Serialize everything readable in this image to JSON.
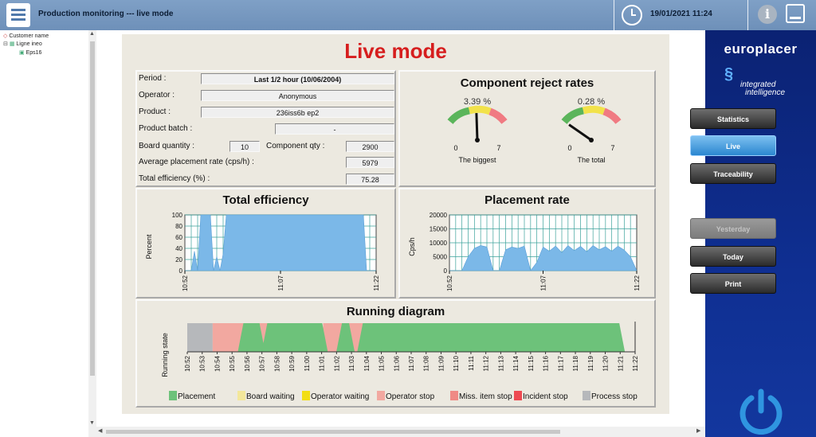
{
  "app": {
    "title": "Production monitoring --- live mode",
    "datetime": "19/01/2021 11:24",
    "info_glyph": "i"
  },
  "tree": {
    "nodes": [
      "Customer name",
      "Ligne ineo",
      "Eps16"
    ]
  },
  "page_title": "Live mode",
  "info": {
    "period_label": "Period :",
    "period_value": "Last 1/2 hour (10/06/2004)",
    "operator_label": "Operator :",
    "operator_value": "Anonymous",
    "product_label": "Product :",
    "product_value": "236iss6b ep2",
    "batch_label": "Product batch :",
    "batch_value": "-",
    "board_qty_label": "Board quantity :",
    "board_qty_value": "10",
    "component_qty_label": "Component qty :",
    "component_qty_value": "2900",
    "avg_rate_label": "Average placement rate (cps/h) :",
    "avg_rate_value": "5979",
    "total_eff_label": "Total efficiency (%) :",
    "total_eff_value": "75.28"
  },
  "reject": {
    "title": "Component reject rates",
    "gauges": [
      {
        "value_text": "3.39 %",
        "value": 3.39,
        "min": "0",
        "max": "7",
        "caption": "The biggest"
      },
      {
        "value_text": "0.28 %",
        "value": 0.28,
        "min": "0",
        "max": "7",
        "caption": "The total"
      }
    ]
  },
  "charts": {
    "efficiency": {
      "title": "Total efficiency",
      "ylabel": "Percent",
      "yticks": [
        "100",
        "80",
        "60",
        "40",
        "20",
        "0"
      ],
      "xticks": [
        "10:52",
        "11:07",
        "11:22"
      ]
    },
    "placement": {
      "title": "Placement rate",
      "ylabel": "Cps/h",
      "yticks": [
        "20000",
        "15000",
        "10000",
        "5000",
        "0"
      ],
      "xticks": [
        "10:52",
        "11:07",
        "11:22"
      ]
    },
    "running": {
      "title": "Running diagram",
      "ylabel": "Running state",
      "xticks": [
        "10:52",
        "10:53",
        "10:54",
        "10:55",
        "10:56",
        "10:57",
        "10:58",
        "10:59",
        "11:00",
        "11:01",
        "11:02",
        "11:03",
        "11:04",
        "11:05",
        "11:06",
        "11:07",
        "11:08",
        "11:09",
        "11:10",
        "11:11",
        "11:12",
        "11:13",
        "11:14",
        "11:15",
        "11:16",
        "11:17",
        "11:18",
        "11:19",
        "11:20",
        "11:21",
        "11:22"
      ],
      "legend": [
        {
          "label": "Placement",
          "color": "#6dc27a"
        },
        {
          "label": "Board waiting",
          "color": "#f3e79a"
        },
        {
          "label": "Operator waiting",
          "color": "#f2de13"
        },
        {
          "label": "Operator stop",
          "color": "#f2a8a0"
        },
        {
          "label": "Miss. item stop",
          "color": "#ef8a85"
        },
        {
          "label": "Incident stop",
          "color": "#ee4a52"
        },
        {
          "label": "Process stop",
          "color": "#b6b8bb"
        }
      ]
    }
  },
  "chart_data": [
    {
      "type": "area",
      "title": "Total efficiency",
      "ylabel": "Percent",
      "ylim": [
        0,
        100
      ],
      "x": [
        0,
        0.5,
        1,
        1.5,
        2,
        2.5,
        3,
        3.5,
        4,
        4.5,
        5,
        5.5,
        6,
        6.5,
        7,
        7.5,
        8,
        8.5,
        9,
        9.5,
        10,
        10.5,
        11,
        11.5,
        12,
        12.5,
        13,
        13.5,
        14,
        14.5,
        15,
        15.5,
        16,
        16.5,
        17,
        17.5,
        18,
        18.5,
        19,
        19.5,
        20,
        20.5,
        21,
        21.5,
        22,
        22.5,
        23,
        23.5,
        24,
        24.5,
        25,
        25.5,
        26,
        26.5,
        27,
        27.5,
        28,
        28.5,
        29,
        29.5,
        30
      ],
      "xlabels": {
        "0": "10:52",
        "15": "11:07",
        "30": "11:22"
      },
      "values": [
        0,
        0,
        0,
        35,
        0,
        100,
        100,
        100,
        100,
        0,
        25,
        0,
        30,
        100,
        100,
        100,
        100,
        100,
        100,
        100,
        100,
        100,
        100,
        100,
        100,
        100,
        100,
        100,
        100,
        100,
        100,
        100,
        100,
        100,
        100,
        100,
        100,
        100,
        100,
        100,
        100,
        100,
        100,
        100,
        100,
        100,
        100,
        100,
        100,
        100,
        100,
        100,
        100,
        100,
        100,
        100,
        100,
        0,
        0,
        0,
        0
      ]
    },
    {
      "type": "area",
      "title": "Placement rate",
      "ylabel": "Cps/h",
      "ylim": [
        0,
        20000
      ],
      "x": [
        0,
        1,
        2,
        3,
        4,
        5,
        6,
        7,
        8,
        9,
        10,
        11,
        12,
        13,
        14,
        15,
        16,
        17,
        18,
        19,
        20,
        21,
        22,
        23,
        24,
        25,
        26,
        27,
        28,
        29,
        30
      ],
      "xlabels": {
        "0": "10:52",
        "15": "11:07",
        "30": "11:22"
      },
      "values": [
        0,
        0,
        0,
        5000,
        8000,
        9000,
        8500,
        0,
        0,
        7500,
        8500,
        8000,
        8800,
        0,
        3000,
        8500,
        7000,
        8800,
        6500,
        9000,
        7200,
        8700,
        6800,
        9000,
        7500,
        8600,
        7000,
        8800,
        7400,
        5000,
        0
      ]
    },
    {
      "type": "area",
      "title": "Running diagram",
      "ylabel": "Running state",
      "xlim": [
        0,
        30
      ],
      "xlabels": [
        "10:52",
        "10:53",
        "10:54",
        "10:55",
        "10:56",
        "10:57",
        "10:58",
        "10:59",
        "11:00",
        "11:01",
        "11:02",
        "11:03",
        "11:04",
        "11:05",
        "11:06",
        "11:07",
        "11:08",
        "11:09",
        "11:10",
        "11:11",
        "11:12",
        "11:13",
        "11:14",
        "11:15",
        "11:16",
        "11:17",
        "11:18",
        "11:19",
        "11:20",
        "11:21",
        "11:22"
      ],
      "series": [
        {
          "name": "Process stop",
          "segments": [
            [
              0,
              1.7
            ]
          ]
        },
        {
          "name": "Operator stop",
          "segments": [
            [
              1.7,
              5.9
            ],
            [
              9.1,
              12.1
            ]
          ]
        },
        {
          "name": "Placement",
          "segments": [
            [
              3.6,
              5.0
            ],
            [
              5.2,
              9.2
            ],
            [
              10.2,
              11.0
            ],
            [
              11.6,
              29.1
            ]
          ]
        }
      ]
    }
  ],
  "nav": {
    "statistics": "Statistics",
    "live": "Live",
    "traceability": "Traceability",
    "yesterday": "Yesterday",
    "today": "Today",
    "print": "Print"
  },
  "brand": {
    "name": "europlacer",
    "tagline_1": "integrated",
    "tagline_2": "intelligence"
  },
  "icons": {
    "menu": "menu-icon",
    "clock": "clock-icon",
    "info": "info-icon",
    "window": "window-icon",
    "power": "power-icon"
  }
}
